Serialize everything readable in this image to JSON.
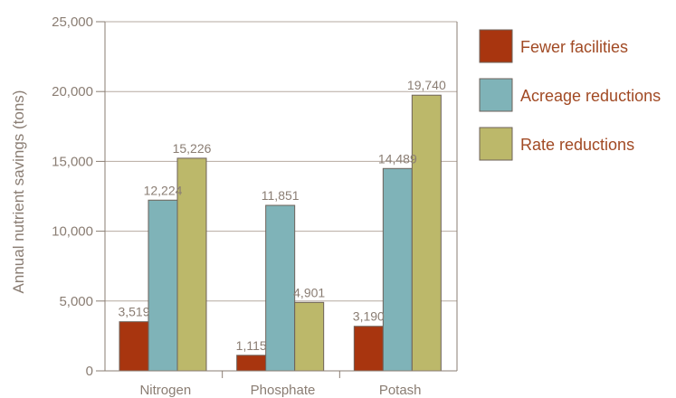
{
  "chart_data": {
    "type": "bar",
    "title": "",
    "xlabel": "",
    "ylabel": "Annual nutrient savings (tons)",
    "ylim": [
      0,
      25000
    ],
    "yticks": [
      0,
      5000,
      10000,
      15000,
      20000,
      25000
    ],
    "ytick_labels": [
      "0",
      "5,000",
      "10,000",
      "15,000",
      "20,000",
      "25,000"
    ],
    "categories": [
      "Nitrogen",
      "Phosphate",
      "Potash"
    ],
    "series": [
      {
        "name": "Fewer facilities",
        "values": [
          3519,
          1115,
          3190
        ],
        "labels": [
          "3,519",
          "1,115",
          "3,190"
        ],
        "color": "#a8350f"
      },
      {
        "name": "Acreage reductions",
        "values": [
          12224,
          11851,
          14489
        ],
        "labels": [
          "12,224",
          "11,851",
          "14,489"
        ],
        "color": "#7fb3b8"
      },
      {
        "name": "Rate reductions",
        "values": [
          15226,
          4901,
          19740
        ],
        "labels": [
          "15,226",
          "4,901",
          "19,740"
        ],
        "color": "#bcb86a"
      }
    ],
    "grid": true,
    "legend_position": "right"
  },
  "colors": {
    "gridline": "#b6aaa0",
    "axis": "#8a7d73",
    "bar_outline": "#6e625a",
    "text": "#8a7d73",
    "legend_text": "#a14a24"
  }
}
